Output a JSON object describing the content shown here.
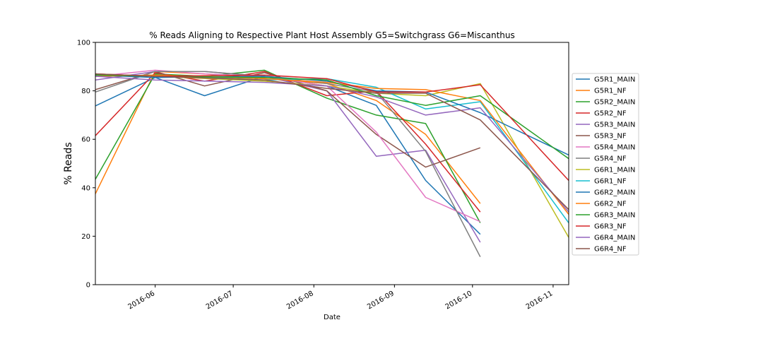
{
  "chart_data": {
    "type": "line",
    "title": "% Reads Aligning to Respective Plant Host Assembly G5=Switchgrass G6=Miscanthus",
    "xlabel": "Date",
    "ylabel": "% Reads",
    "ylim": [
      0,
      100
    ],
    "xlim": [
      "2016-05-09",
      "2016-11-07"
    ],
    "x_ticks": [
      "2016-06",
      "2016-07",
      "2016-08",
      "2016-09",
      "2016-10",
      "2016-11"
    ],
    "y_ticks": [
      0,
      20,
      40,
      60,
      80,
      100
    ],
    "grid": false,
    "legend_position": "right",
    "colors": [
      "#1f77b4",
      "#ff7f0e",
      "#2ca02c",
      "#d62728",
      "#9467bd",
      "#8c564b",
      "#e377c2",
      "#7f7f7f",
      "#bcbd22",
      "#17becf"
    ],
    "series": [
      {
        "name": "G5R1_MAIN",
        "color": "#1f77b4",
        "x": [
          "2016-05-09",
          "2016-06-01",
          "2016-06-20",
          "2016-07-13",
          "2016-08-06",
          "2016-08-25",
          "2016-09-13",
          "2016-10-04"
        ],
        "y": [
          73.8,
          85.5,
          78.0,
          86.0,
          82.0,
          74.0,
          43.0,
          20.8
        ]
      },
      {
        "name": "G5R1_NF",
        "color": "#ff7f0e",
        "x": [
          "2016-05-09",
          "2016-06-01",
          "2016-06-20",
          "2016-07-13",
          "2016-08-06",
          "2016-08-25",
          "2016-09-13",
          "2016-10-04"
        ],
        "y": [
          37.5,
          88.0,
          87.0,
          85.0,
          83.0,
          76.0,
          62.0,
          33.5
        ]
      },
      {
        "name": "G5R2_MAIN",
        "color": "#2ca02c",
        "x": [
          "2016-05-09",
          "2016-06-01",
          "2016-06-20",
          "2016-07-13",
          "2016-08-06",
          "2016-08-25",
          "2016-09-13",
          "2016-10-04"
        ],
        "y": [
          43.5,
          87.0,
          86.0,
          88.5,
          77.0,
          70.0,
          66.5,
          25.5
        ]
      },
      {
        "name": "G5R2_NF",
        "color": "#d62728",
        "x": [
          "2016-05-09",
          "2016-06-01",
          "2016-06-20",
          "2016-07-13",
          "2016-08-06",
          "2016-08-25",
          "2016-09-13",
          "2016-10-04"
        ],
        "y": [
          61.5,
          87.5,
          84.0,
          88.0,
          78.0,
          80.0,
          58.0,
          30.0
        ]
      },
      {
        "name": "G5R3_MAIN",
        "color": "#9467bd",
        "x": [
          "2016-05-09",
          "2016-06-01",
          "2016-06-20",
          "2016-07-13",
          "2016-08-06",
          "2016-08-25",
          "2016-09-13",
          "2016-10-04"
        ],
        "y": [
          84.5,
          88.0,
          88.0,
          86.0,
          80.0,
          53.0,
          55.5,
          17.5
        ]
      },
      {
        "name": "G5R3_NF",
        "color": "#8c564b",
        "x": [
          "2016-05-09",
          "2016-06-01",
          "2016-06-20",
          "2016-07-13",
          "2016-08-06",
          "2016-08-25",
          "2016-09-13",
          "2016-10-04"
        ],
        "y": [
          80.5,
          88.0,
          82.0,
          87.5,
          80.0,
          62.0,
          48.5,
          56.5
        ]
      },
      {
        "name": "G5R4_MAIN",
        "color": "#e377c2",
        "x": [
          "2016-05-09",
          "2016-06-01",
          "2016-06-20",
          "2016-07-13",
          "2016-08-06",
          "2016-08-25",
          "2016-09-13",
          "2016-10-04"
        ],
        "y": [
          86.0,
          88.5,
          87.0,
          86.0,
          82.0,
          63.0,
          36.0,
          26.0
        ]
      },
      {
        "name": "G5R4_NF",
        "color": "#7f7f7f",
        "x": [
          "2016-05-09",
          "2016-06-01",
          "2016-06-20",
          "2016-07-13",
          "2016-08-06",
          "2016-08-25",
          "2016-09-13",
          "2016-10-04"
        ],
        "y": [
          79.5,
          88.0,
          88.0,
          86.0,
          83.0,
          79.5,
          55.0,
          11.5
        ]
      },
      {
        "name": "G6R1_MAIN",
        "color": "#bcbd22",
        "x": [
          "2016-05-09",
          "2016-06-01",
          "2016-07-13",
          "2016-08-06",
          "2016-08-25",
          "2016-09-13",
          "2016-10-04",
          "2016-11-07"
        ],
        "y": [
          87.0,
          86.0,
          84.0,
          82.0,
          79.0,
          78.0,
          83.0,
          19.5
        ]
      },
      {
        "name": "G6R1_NF",
        "color": "#17becf",
        "x": [
          "2016-05-09",
          "2016-06-01",
          "2016-07-13",
          "2016-08-06",
          "2016-08-25",
          "2016-09-13",
          "2016-10-04",
          "2016-11-07"
        ],
        "y": [
          86.0,
          86.5,
          84.5,
          85.0,
          81.5,
          72.5,
          75.5,
          25.5
        ]
      },
      {
        "name": "G6R2_MAIN",
        "color": "#1f77b4",
        "x": [
          "2016-05-09",
          "2016-06-01",
          "2016-07-13",
          "2016-08-06",
          "2016-08-25",
          "2016-09-13",
          "2016-10-04",
          "2016-11-07"
        ],
        "y": [
          86.5,
          85.5,
          86.0,
          84.0,
          80.0,
          79.5,
          71.0,
          53.5
        ]
      },
      {
        "name": "G6R2_NF",
        "color": "#ff7f0e",
        "x": [
          "2016-05-09",
          "2016-06-01",
          "2016-07-13",
          "2016-08-06",
          "2016-08-25",
          "2016-09-13",
          "2016-10-04",
          "2016-11-07"
        ],
        "y": [
          86.0,
          86.5,
          85.0,
          83.5,
          81.0,
          80.5,
          76.0,
          29.0
        ]
      },
      {
        "name": "G6R3_MAIN",
        "color": "#2ca02c",
        "x": [
          "2016-05-09",
          "2016-06-01",
          "2016-07-13",
          "2016-08-06",
          "2016-08-25",
          "2016-09-13",
          "2016-10-04",
          "2016-11-07"
        ],
        "y": [
          86.5,
          86.0,
          85.5,
          84.5,
          78.0,
          74.0,
          78.0,
          52.0
        ]
      },
      {
        "name": "G6R3_NF",
        "color": "#d62728",
        "x": [
          "2016-05-09",
          "2016-06-01",
          "2016-07-13",
          "2016-08-06",
          "2016-08-25",
          "2016-09-13",
          "2016-10-04",
          "2016-11-07"
        ],
        "y": [
          87.0,
          86.0,
          86.5,
          85.0,
          79.5,
          79.5,
          82.5,
          43.0
        ]
      },
      {
        "name": "G6R4_MAIN",
        "color": "#9467bd",
        "x": [
          "2016-05-09",
          "2016-06-01",
          "2016-07-13",
          "2016-08-06",
          "2016-08-25",
          "2016-09-13",
          "2016-10-04",
          "2016-11-07"
        ],
        "y": [
          86.0,
          84.5,
          83.5,
          82.0,
          77.5,
          70.0,
          73.0,
          30.0
        ]
      },
      {
        "name": "G6R4_NF",
        "color": "#8c564b",
        "x": [
          "2016-05-09",
          "2016-06-01",
          "2016-07-13",
          "2016-08-06",
          "2016-08-25",
          "2016-09-13",
          "2016-10-04",
          "2016-11-07"
        ],
        "y": [
          87.0,
          86.0,
          84.5,
          81.0,
          79.0,
          79.0,
          68.0,
          31.0
        ]
      }
    ]
  }
}
